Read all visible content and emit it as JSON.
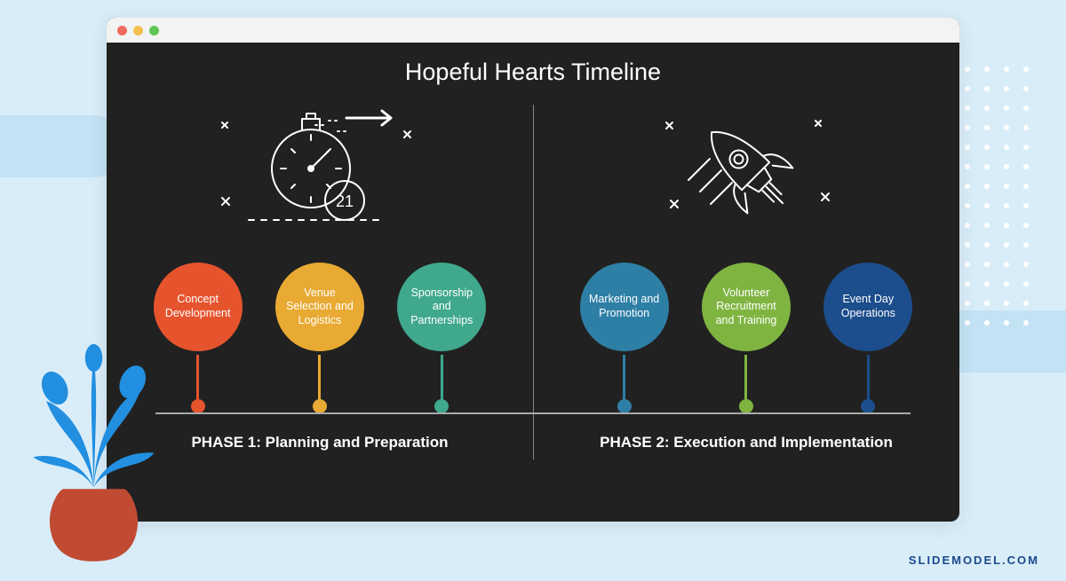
{
  "background_color": "#d9edf9",
  "stripe_color": "#c3e3f4",
  "titlebar": {
    "bg": "#f3f3f3",
    "close_color": "#ed6a5e",
    "min_color": "#f5bf4f",
    "max_color": "#60c554"
  },
  "slide": {
    "bg_color": "#212121",
    "title": "Hopeful Hearts Timeline",
    "title_color": "#ffffff",
    "baseline_color": "#aaaaaa",
    "divider_color": "#888888",
    "stopwatch_number": "21"
  },
  "phases": [
    {
      "label": "PHASE 1: Planning and Preparation",
      "nodes": [
        {
          "label": "Concept Development",
          "color": "#e6542e"
        },
        {
          "label": "Venue Selection and Logistics",
          "color": "#e8aa33"
        },
        {
          "label": "Sponsorship and Partnerships",
          "color": "#3fa88d"
        }
      ]
    },
    {
      "label": "PHASE 2: Execution and Implementation",
      "nodes": [
        {
          "label": "Marketing and Promotion",
          "color": "#2e7fa6"
        },
        {
          "label": "Volunteer Recruitment and Training",
          "color": "#7fb441"
        },
        {
          "label": "Event Day Operations",
          "color": "#1c4d8c"
        }
      ]
    }
  ],
  "watermark": "SLIDEMODEL.COM",
  "plant": {
    "pot_color": "#c04b32",
    "leaf_color": "#228fe0"
  }
}
